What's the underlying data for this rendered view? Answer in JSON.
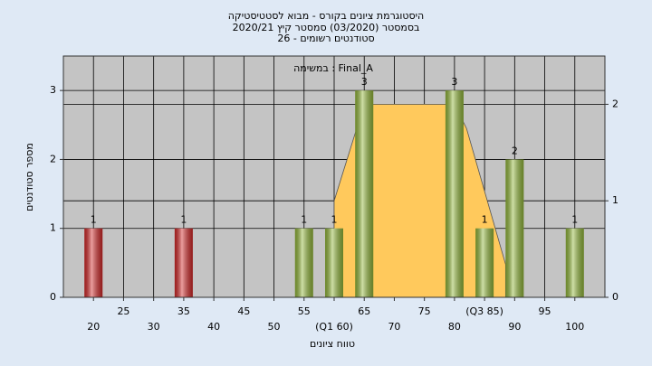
{
  "chart_data": {
    "type": "bar",
    "title": "היסטוגרמת ציונים בקורס - מבוא לסטטיסטיקה",
    "subtitle": [
      "בסמסטר (03/2020) סמסטר קיץ 2020/21",
      "סטודנטים רשומים - 26"
    ],
    "annotation": "במשימה : Final_A",
    "x_label": "טווח ציונים",
    "y_label": "מספר סטודנטים",
    "xlim": [
      15,
      105
    ],
    "xticks": [
      20,
      25,
      30,
      35,
      40,
      45,
      50,
      55,
      {
        "value": 60,
        "label": "(Q1 60)"
      },
      65,
      70,
      75,
      80,
      {
        "value": 85,
        "label": "(Q3 85)"
      },
      90,
      95,
      100
    ],
    "ylim": [
      0,
      3.5
    ],
    "yticks": [
      0,
      1,
      2,
      3
    ],
    "y2lim": [
      0,
      2.5
    ],
    "y2ticks": [
      0,
      1,
      2
    ],
    "grid": true,
    "series": [
      {
        "type": "area",
        "axis": "y2",
        "color": "#ffc95c",
        "x": [
          60,
          65,
          80,
          82,
          88.5
        ],
        "values": [
          1,
          2,
          2,
          1.75,
          0.34
        ]
      },
      {
        "type": "bar",
        "x": [
          20,
          35,
          55,
          60,
          65,
          80,
          85,
          90,
          100
        ],
        "values": [
          1,
          1,
          1,
          1,
          3,
          3,
          1,
          2,
          1
        ],
        "colors": [
          "#d42828",
          "#d42828",
          "#93b83a",
          "#93b83a",
          "#93b83a",
          "#93b83a",
          "#93b83a",
          "#93b83a",
          "#93b83a"
        ]
      }
    ]
  }
}
